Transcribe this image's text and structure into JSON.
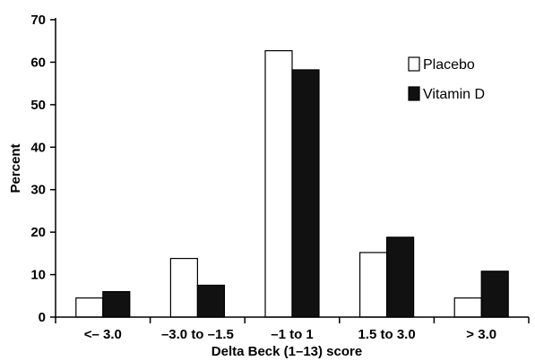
{
  "chart_data": {
    "type": "bar",
    "categories": [
      "<– 3.0",
      "–3.0 to –1.5",
      "–1 to 1",
      "1.5 to 3.0",
      "> 3.0"
    ],
    "series": [
      {
        "name": "Placebo",
        "values": [
          4.5,
          13.8,
          62.7,
          15.2,
          4.5
        ],
        "color": "#ffffff"
      },
      {
        "name": "Vitamin D",
        "values": [
          6.0,
          7.5,
          58.2,
          18.8,
          10.8
        ],
        "color": "#111111"
      }
    ],
    "xlabel": "Delta Beck (1–13) score",
    "ylabel": "Percent",
    "ylim": [
      0,
      70
    ],
    "yticks": [
      0,
      10,
      20,
      30,
      40,
      50,
      60,
      70
    ],
    "legend_position": "top-right",
    "grid": false
  }
}
